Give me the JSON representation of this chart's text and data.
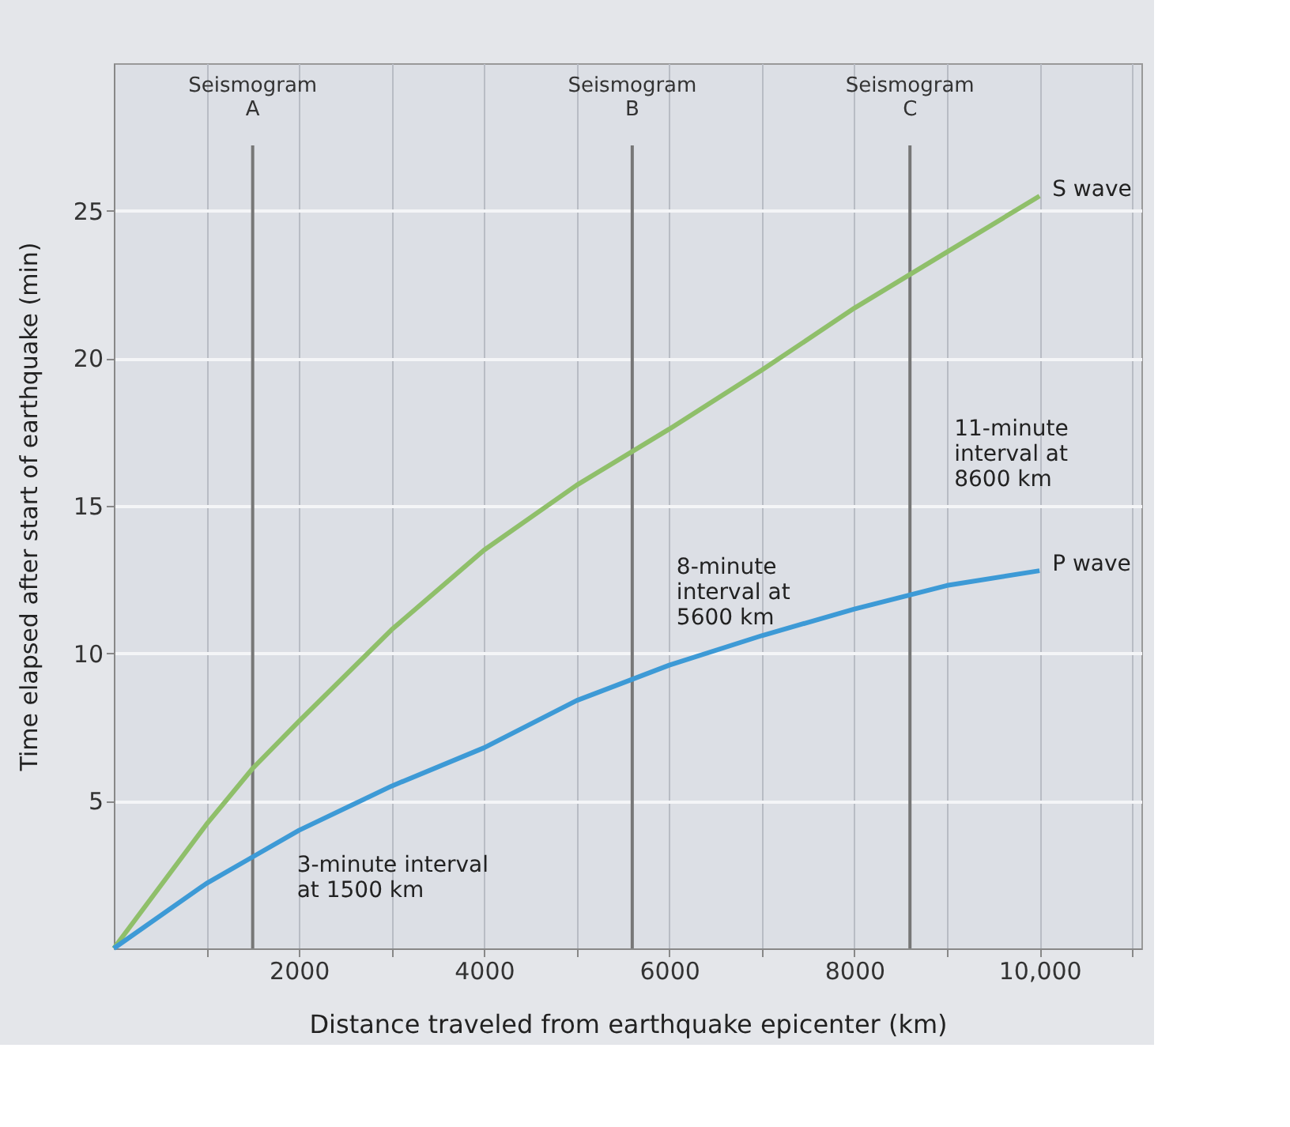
{
  "chart_data": {
    "type": "line",
    "xlabel": "Distance traveled from earthquake epicenter (km)",
    "ylabel": "Time elapsed after start of earthquake (min)",
    "x": [
      0,
      1000,
      1500,
      2000,
      3000,
      4000,
      5000,
      6000,
      7000,
      8000,
      9000,
      10000
    ],
    "series": [
      {
        "name": "S wave",
        "color": "#8fbf6a",
        "values": [
          0,
          4.2,
          6.1,
          7.7,
          10.8,
          13.5,
          15.7,
          17.6,
          19.6,
          21.7,
          23.6,
          25.5
        ]
      },
      {
        "name": "P wave",
        "color": "#3d9ad6",
        "values": [
          0,
          2.2,
          3.1,
          4.0,
          5.5,
          6.8,
          8.4,
          9.6,
          10.6,
          11.5,
          12.3,
          12.8
        ]
      }
    ],
    "xlim": [
      0,
      11100
    ],
    "ylim": [
      0,
      30
    ],
    "xticks": [
      {
        "value": 1000,
        "label": null
      },
      2000,
      {
        "value": 3000,
        "label": null
      },
      4000,
      {
        "value": 5000,
        "label": null
      },
      6000,
      {
        "value": 7000,
        "label": null
      },
      8000,
      {
        "value": 9000,
        "label": null
      },
      {
        "value": 10000,
        "label": "10,000"
      },
      {
        "value": 11000,
        "label": null
      }
    ],
    "yticks": [
      5,
      10,
      15,
      20,
      25
    ],
    "grid": true,
    "marker": "none",
    "line_style": "solid",
    "ref_lines": [
      {
        "axis": "x",
        "value": 1500,
        "label": "Seismogram\nA",
        "color": "#777777"
      },
      {
        "axis": "x",
        "value": 5600,
        "label": "Seismogram\nB",
        "color": "#777777"
      },
      {
        "axis": "x",
        "value": 8600,
        "label": "Seismogram\nC",
        "color": "#777777"
      }
    ],
    "annotations": [
      {
        "text": "3-minute interval\nat 1500 km",
        "x": 1500,
        "y": 2.8
      },
      {
        "text": "8-minute\ninterval at\n5600 km",
        "x": 5600,
        "y": 12.9
      },
      {
        "text": "11-minute\ninterval at\n8600 km",
        "x": 8600,
        "y": 17.6
      }
    ]
  }
}
